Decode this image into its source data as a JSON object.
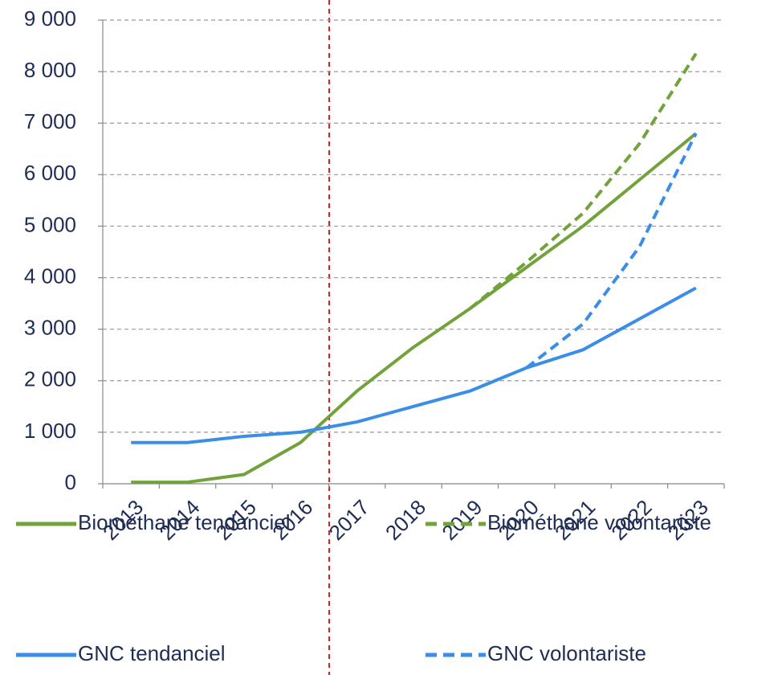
{
  "chart_data": {
    "type": "line",
    "categories": [
      "2013",
      "2014",
      "2015",
      "2016",
      "2017",
      "2018",
      "2019",
      "2020",
      "2021",
      "2022",
      "2023"
    ],
    "series": [
      {
        "name": "Biométhane tendanciel",
        "color": "#72a23a",
        "dashed": false,
        "values": [
          30,
          30,
          180,
          800,
          1800,
          2650,
          3400,
          4200,
          5000,
          5900,
          6800
        ]
      },
      {
        "name": "Biométhane volontariste",
        "color": "#72a23a",
        "dashed": true,
        "values": [
          null,
          null,
          null,
          null,
          null,
          null,
          3400,
          4300,
          5250,
          6600,
          8350
        ]
      },
      {
        "name": "GNC tendanciel",
        "color": "#3a8ee8",
        "dashed": false,
        "values": [
          800,
          800,
          920,
          1000,
          1200,
          1500,
          1800,
          2250,
          2600,
          3200,
          3800
        ]
      },
      {
        "name": "GNC volontariste",
        "color": "#3a8ee8",
        "dashed": true,
        "values": [
          null,
          null,
          null,
          null,
          null,
          null,
          null,
          2250,
          3100,
          4600,
          6800
        ]
      }
    ],
    "ylim": [
      0,
      9000
    ],
    "yticks": [
      0,
      {
        "value": 1000,
        "label": "1 000"
      },
      {
        "value": 2000,
        "label": "2 000"
      },
      {
        "value": 3000,
        "label": "3 000"
      },
      {
        "value": 4000,
        "label": "4 000"
      },
      {
        "value": 5000,
        "label": "5 000"
      },
      {
        "value": 6000,
        "label": "6 000"
      },
      {
        "value": 7000,
        "label": "7 000"
      },
      {
        "value": 8000,
        "label": "8 000"
      },
      {
        "value": 9000,
        "label": "9 000"
      }
    ],
    "grid": true,
    "legend": "bottom"
  }
}
